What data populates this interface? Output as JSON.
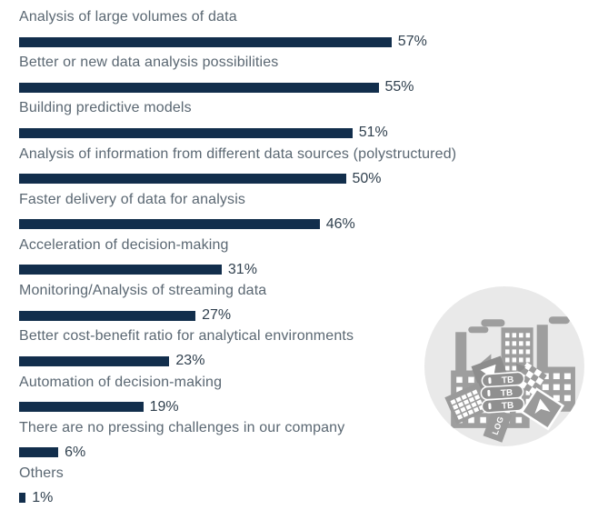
{
  "chart_data": {
    "type": "bar",
    "orientation": "horizontal",
    "title": "",
    "xlabel": "",
    "ylabel": "",
    "xlim": [
      0,
      60
    ],
    "grid": false,
    "legend": false,
    "value_suffix": "%",
    "categories": [
      "Analysis of large volumes of data",
      "Better or new data analysis possibilities",
      "Building predictive models",
      "Analysis of information from different data sources (polystructured)",
      "Faster delivery of data for analysis",
      "Acceleration of decision-making",
      "Monitoring/Analysis of streaming data",
      "Better cost-benefit ratio for analytical environments",
      "Automation of decision-making",
      "There are no pressing challenges in our company",
      "Others"
    ],
    "values": [
      57,
      55,
      51,
      50,
      46,
      31,
      27,
      23,
      19,
      6,
      1
    ],
    "bar_color": "#122e4c",
    "label_color": "#5a6772",
    "value_color": "#31414f"
  },
  "illustration": {
    "name": "factory-producing-terabytes-of-data",
    "tb_label": "TB",
    "log_label": "LOG",
    "circle_color": "#e9e9e9",
    "graphic_color": "#9e9e9e",
    "graphic_color_dark": "#8d8d8d",
    "card_color": "#9a9a9a",
    "drive_color": "#8f8f8f"
  }
}
